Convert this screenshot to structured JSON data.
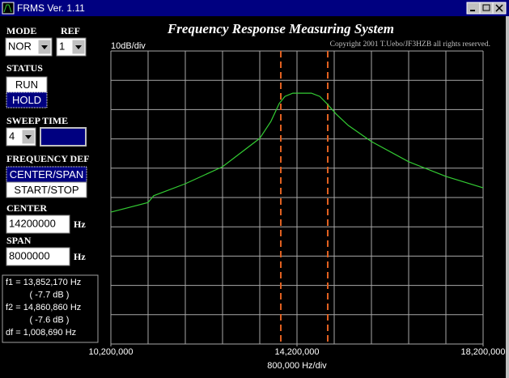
{
  "window": {
    "title": "FRMS Ver. 1.11"
  },
  "panel": {
    "mode": {
      "label": "MODE",
      "value": "NOR"
    },
    "ref": {
      "label": "REF",
      "value": "1"
    },
    "status": {
      "label": "STATUS",
      "options": [
        "RUN",
        "HOLD"
      ],
      "selected": "HOLD"
    },
    "sweep_time": {
      "label": "SWEEP TIME",
      "value": "4"
    },
    "frequency_def": {
      "label": "FREQUENCY DEF",
      "options": [
        "CENTER/SPAN",
        "START/STOP"
      ],
      "selected": "CENTER/SPAN"
    },
    "center": {
      "label": "CENTER",
      "value": "14200000",
      "unit": "Hz"
    },
    "span": {
      "label": "SPAN",
      "value": "8000000",
      "unit": "Hz"
    },
    "readout": [
      "f1 = 13,852,170 Hz",
      "( -7.7 dB )",
      "f2 = 14,860,860 Hz",
      "( -7.6 dB )",
      "df = 1,008,690 Hz"
    ]
  },
  "chart_data": {
    "type": "line",
    "title": "Frequency Response Measuring System",
    "subtitle": "Copyright 2001 T.Uebo/JF3HZB all rights reserved.",
    "ylabel": "10dB/div",
    "xlabel": "800,000 Hz/div",
    "x": [
      10200000,
      11000000,
      11120000,
      11800000,
      12600000,
      13400000,
      13640000,
      13820000,
      13940000,
      14110000,
      14510000,
      14690000,
      14840000,
      15040000,
      15300000,
      15800000,
      16600000,
      17400000,
      18200000
    ],
    "values": [
      -55.0,
      -51.7,
      -49.4,
      -45.3,
      -39.5,
      -29.8,
      -24.0,
      -17.9,
      -15.5,
      -14.4,
      -14.4,
      -15.5,
      -17.9,
      -21.5,
      -25.4,
      -30.9,
      -37.8,
      -42.8,
      -46.7
    ],
    "color": "#33cc33",
    "xlim": [
      10200000,
      18200000
    ],
    "xticks": [
      {
        "value": 10200000,
        "label": "10,200,000"
      },
      {
        "value": 14200000,
        "label": "14,200,000"
      },
      {
        "value": 18200000,
        "label": "18,200,000"
      }
    ],
    "ylim": [
      -100,
      0
    ],
    "markers": [
      13852170,
      14860860
    ],
    "marker_color": "#e06020",
    "grid": true
  }
}
